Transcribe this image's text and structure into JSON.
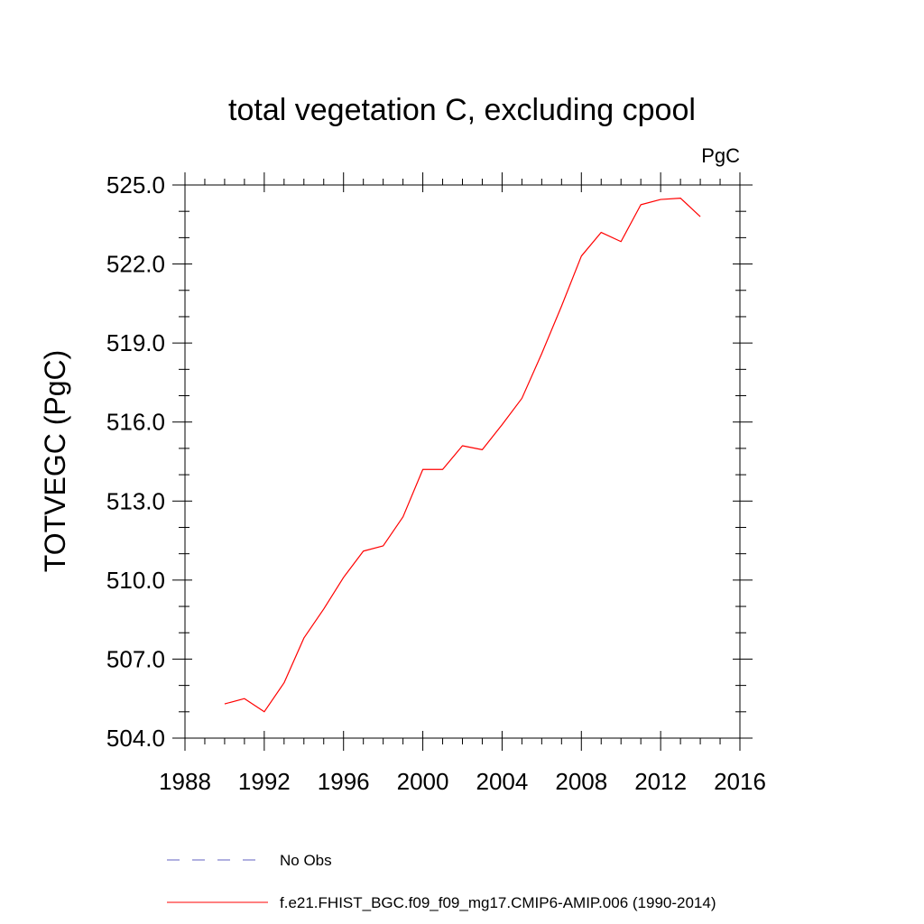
{
  "chart_data": {
    "type": "line",
    "title": "total vegetation C, excluding cpool",
    "units": "PgC",
    "ylabel": "TOTVEGC  (PgC)",
    "xlabel": "",
    "xlim": [
      1988,
      2016
    ],
    "ylim": [
      504.0,
      525.0
    ],
    "x_ticks": [
      1988,
      1992,
      1996,
      2000,
      2004,
      2008,
      2012,
      2016
    ],
    "x_tick_labels": [
      "1988",
      "1992",
      "1996",
      "2000",
      "2004",
      "2008",
      "2012",
      "2016"
    ],
    "y_ticks": [
      504.0,
      507.0,
      510.0,
      513.0,
      516.0,
      519.0,
      522.0,
      525.0
    ],
    "y_tick_labels": [
      "504.0",
      "507.0",
      "510.0",
      "513.0",
      "516.0",
      "519.0",
      "522.0",
      "525.0"
    ],
    "x_minor_step": 1,
    "y_minor_step": 1,
    "grid": false,
    "series": [
      {
        "name": "f.e21.FHIST_BGC.f09_f09_mg17.CMIP6-AMIP.006 (1990-2014)",
        "color": "#ff0000",
        "style": "solid",
        "x": [
          1990,
          1991,
          1992,
          1993,
          1994,
          1995,
          1996,
          1997,
          1998,
          1999,
          2000,
          2001,
          2002,
          2003,
          2004,
          2005,
          2006,
          2007,
          2008,
          2009,
          2010,
          2011,
          2012,
          2013,
          2014
        ],
        "y": [
          505.3,
          505.5,
          505.0,
          506.1,
          507.8,
          508.9,
          510.1,
          511.1,
          511.3,
          512.4,
          514.2,
          514.2,
          515.1,
          514.95,
          515.9,
          516.9,
          518.6,
          520.4,
          522.3,
          523.2,
          522.85,
          524.25,
          524.45,
          524.5,
          523.8
        ]
      }
    ],
    "legend": {
      "placement": "bottom",
      "entries": [
        {
          "label": "No Obs",
          "color": "#6060c0",
          "style": "dashed"
        },
        {
          "label": "f.e21.FHIST_BGC.f09_f09_mg17.CMIP6-AMIP.006 (1990-2014)",
          "color": "#ff0000",
          "style": "solid"
        }
      ]
    }
  }
}
